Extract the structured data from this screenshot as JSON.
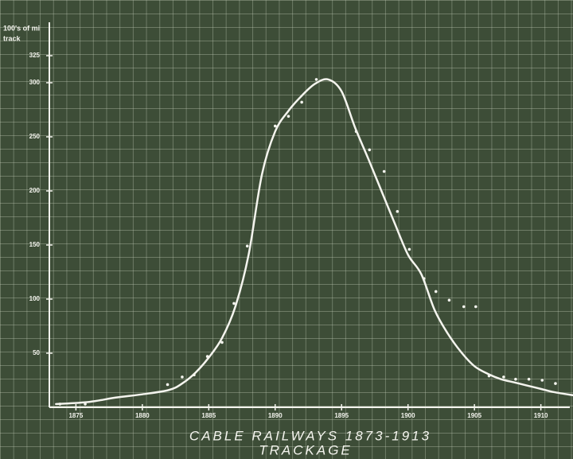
{
  "chart_data": {
    "type": "line",
    "title": "CABLE RAILWAYS 1873-1913",
    "subtitle": "TRACKAGE",
    "y_label": [
      "100's of mi",
      "track"
    ],
    "xlim": [
      1873,
      1912
    ],
    "xticks": [
      1875,
      1880,
      1885,
      1890,
      1895,
      1900,
      1905,
      1910
    ],
    "ylim": [
      0,
      350
    ],
    "yticks": [
      50,
      100,
      150,
      200,
      250,
      300,
      325
    ],
    "color": "#f4f4ee",
    "series": [
      {
        "kind": "curve",
        "x": [
          1873.5,
          1876,
          1878,
          1880,
          1882,
          1883,
          1884,
          1885,
          1886,
          1887,
          1888,
          1889,
          1890,
          1891,
          1892,
          1893,
          1894,
          1895,
          1896,
          1897,
          1898,
          1899,
          1900,
          1901,
          1902,
          1903,
          1904,
          1905,
          1906,
          1907,
          1908,
          1909,
          1910,
          1911,
          1912.5
        ],
        "values": [
          3,
          5,
          9,
          12,
          16,
          22,
          32,
          46,
          64,
          93,
          141,
          215,
          255,
          274,
          288,
          299,
          303,
          292,
          259,
          230,
          200,
          170,
          141,
          123,
          90,
          68,
          51,
          38,
          31,
          26,
          23,
          20,
          17,
          14,
          11
        ]
      },
      {
        "kind": "points",
        "x": [
          1873.8,
          1875.7,
          1881.9,
          1883.0,
          1883.9,
          1884.9,
          1886.0,
          1886.9,
          1887.9,
          1890.0,
          1891.0,
          1892.0,
          1893.1,
          1896.1,
          1897.1,
          1898.2,
          1899.2,
          1900.1,
          1901.2,
          1902.1,
          1903.1,
          1904.2,
          1905.1,
          1906.1,
          1907.2,
          1908.1,
          1909.1,
          1910.1,
          1911.1
        ],
        "values": [
          3,
          3,
          21,
          28,
          30,
          47,
          60,
          96,
          149,
          260,
          269,
          282,
          303,
          255,
          238,
          218,
          181,
          146,
          119,
          107,
          99,
          93,
          93,
          29,
          28,
          26,
          26,
          25,
          22
        ]
      }
    ]
  }
}
